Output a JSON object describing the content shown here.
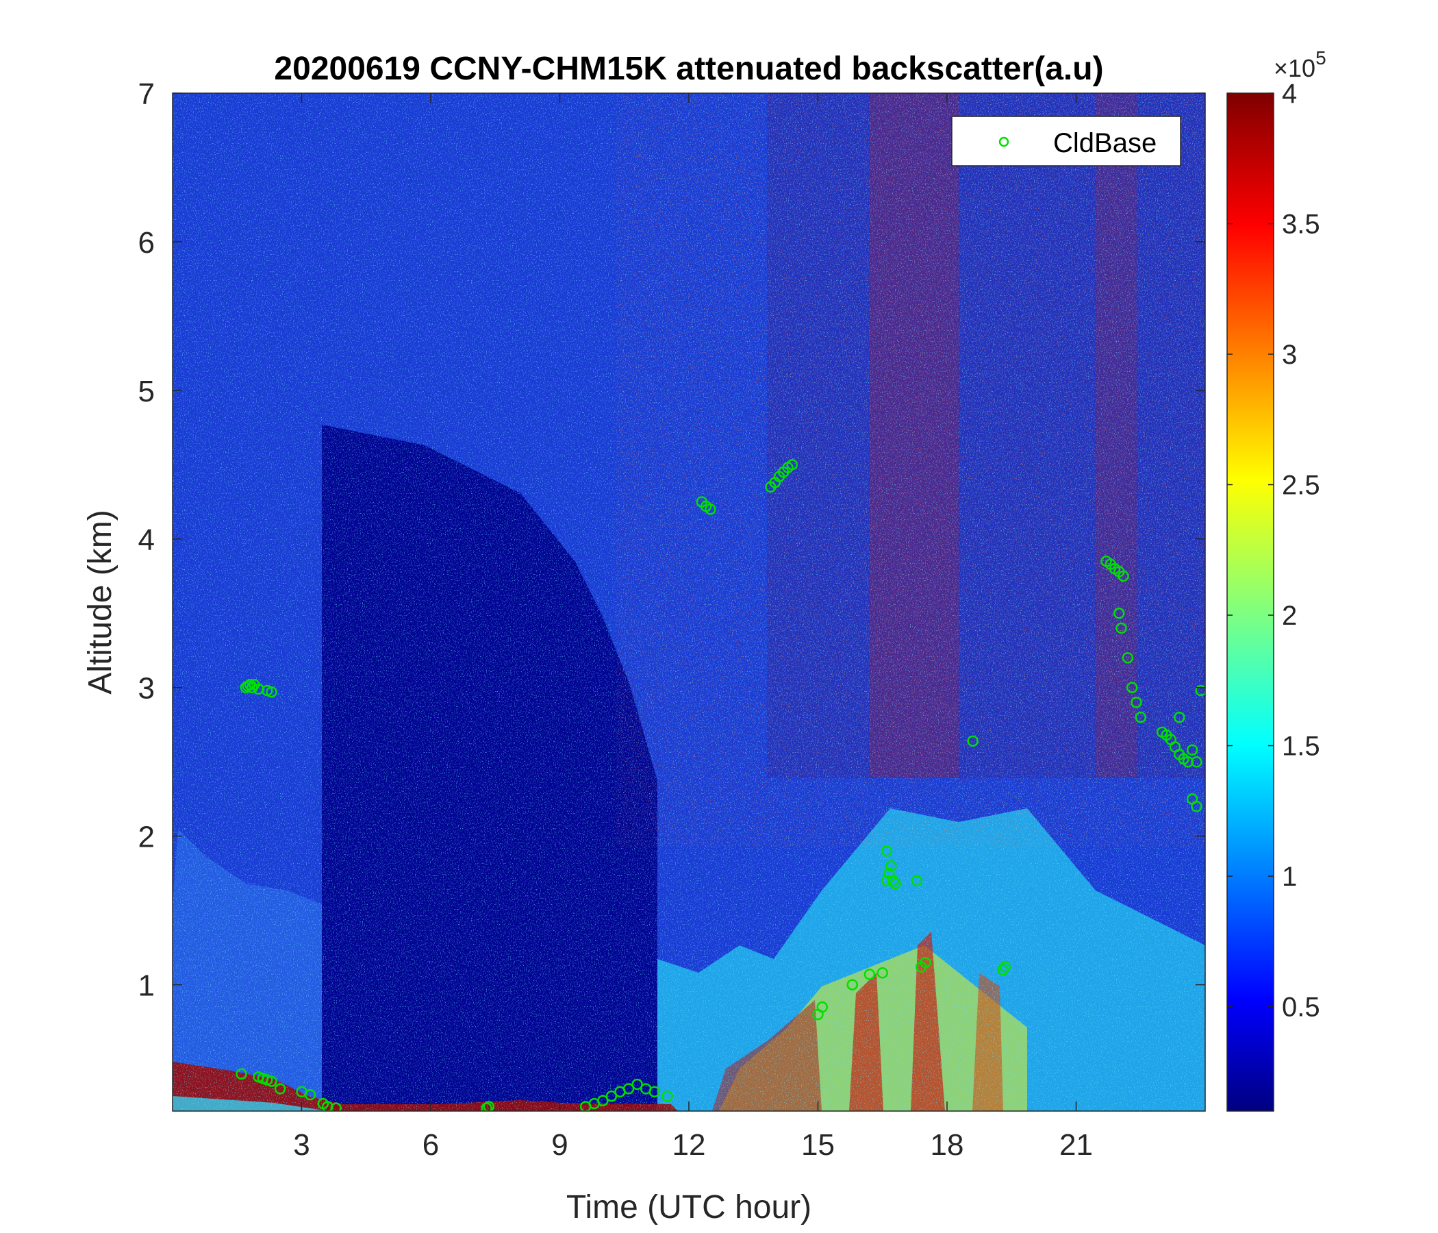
{
  "chart_data": {
    "type": "heatmap",
    "title": "20200619 CCNY-CHM15K attenuated backscatter(a.u)",
    "xlabel": "Time (UTC hour)",
    "ylabel": "Altitude (km)",
    "xlim": [
      0,
      24
    ],
    "ylim": [
      0.15,
      7
    ],
    "x_ticks": [
      3,
      6,
      9,
      12,
      15,
      18,
      21
    ],
    "y_ticks": [
      1,
      2,
      3,
      4,
      5,
      6,
      7
    ],
    "colorbar": {
      "colormap": "jet",
      "range": [
        0.1,
        4
      ],
      "ticks": [
        0.5,
        1,
        1.5,
        2,
        2.5,
        3,
        3.5,
        4
      ],
      "exponent_label": "×10",
      "exponent": "5"
    },
    "legend": {
      "position": "top-right",
      "entries": [
        "CldBase"
      ]
    },
    "series": [
      {
        "name": "CldBase",
        "marker": "circle",
        "color": "#00e000",
        "points": [
          [
            1.7,
            3.0
          ],
          [
            1.75,
            3.01
          ],
          [
            1.8,
            3.02
          ],
          [
            1.85,
            3.0
          ],
          [
            1.9,
            3.02
          ],
          [
            2.0,
            2.99
          ],
          [
            2.2,
            2.98
          ],
          [
            2.3,
            2.97
          ],
          [
            2.0,
            0.38
          ],
          [
            2.1,
            0.37
          ],
          [
            2.2,
            0.36
          ],
          [
            2.3,
            0.35
          ],
          [
            1.6,
            0.4
          ],
          [
            2.5,
            0.3
          ],
          [
            3.0,
            0.28
          ],
          [
            3.2,
            0.26
          ],
          [
            3.5,
            0.2
          ],
          [
            3.6,
            0.18
          ],
          [
            3.8,
            0.17
          ],
          [
            7.3,
            0.17
          ],
          [
            7.35,
            0.18
          ],
          [
            9.6,
            0.18
          ],
          [
            9.8,
            0.2
          ],
          [
            10.0,
            0.22
          ],
          [
            10.2,
            0.25
          ],
          [
            10.4,
            0.28
          ],
          [
            10.6,
            0.3
          ],
          [
            10.8,
            0.33
          ],
          [
            11.0,
            0.3
          ],
          [
            11.2,
            0.28
          ],
          [
            11.5,
            0.25
          ],
          [
            12.3,
            4.25
          ],
          [
            12.4,
            4.22
          ],
          [
            12.5,
            4.2
          ],
          [
            13.9,
            4.35
          ],
          [
            14.0,
            4.38
          ],
          [
            14.1,
            4.42
          ],
          [
            14.2,
            4.45
          ],
          [
            14.3,
            4.48
          ],
          [
            14.4,
            4.5
          ],
          [
            15.0,
            0.8
          ],
          [
            15.1,
            0.85
          ],
          [
            15.8,
            1.0
          ],
          [
            16.2,
            1.07
          ],
          [
            16.5,
            1.08
          ],
          [
            16.6,
            1.7
          ],
          [
            16.65,
            1.75
          ],
          [
            16.7,
            1.8
          ],
          [
            16.75,
            1.7
          ],
          [
            16.8,
            1.68
          ],
          [
            16.6,
            1.9
          ],
          [
            17.4,
            1.12
          ],
          [
            17.5,
            1.15
          ],
          [
            17.3,
            1.7
          ],
          [
            18.6,
            2.64
          ],
          [
            19.3,
            1.1
          ],
          [
            19.35,
            1.12
          ],
          [
            21.7,
            3.85
          ],
          [
            21.8,
            3.83
          ],
          [
            21.9,
            3.8
          ],
          [
            22.0,
            3.78
          ],
          [
            22.1,
            3.75
          ],
          [
            22.0,
            3.5
          ],
          [
            22.05,
            3.4
          ],
          [
            22.2,
            3.2
          ],
          [
            22.3,
            3.0
          ],
          [
            22.4,
            2.9
          ],
          [
            22.5,
            2.8
          ],
          [
            23.0,
            2.7
          ],
          [
            23.1,
            2.68
          ],
          [
            23.2,
            2.65
          ],
          [
            23.3,
            2.6
          ],
          [
            23.4,
            2.55
          ],
          [
            23.5,
            2.52
          ],
          [
            23.6,
            2.5
          ],
          [
            23.4,
            2.8
          ],
          [
            23.7,
            2.58
          ],
          [
            23.8,
            2.5
          ],
          [
            23.9,
            2.98
          ],
          [
            23.7,
            2.25
          ],
          [
            23.8,
            2.2
          ]
        ]
      }
    ]
  }
}
